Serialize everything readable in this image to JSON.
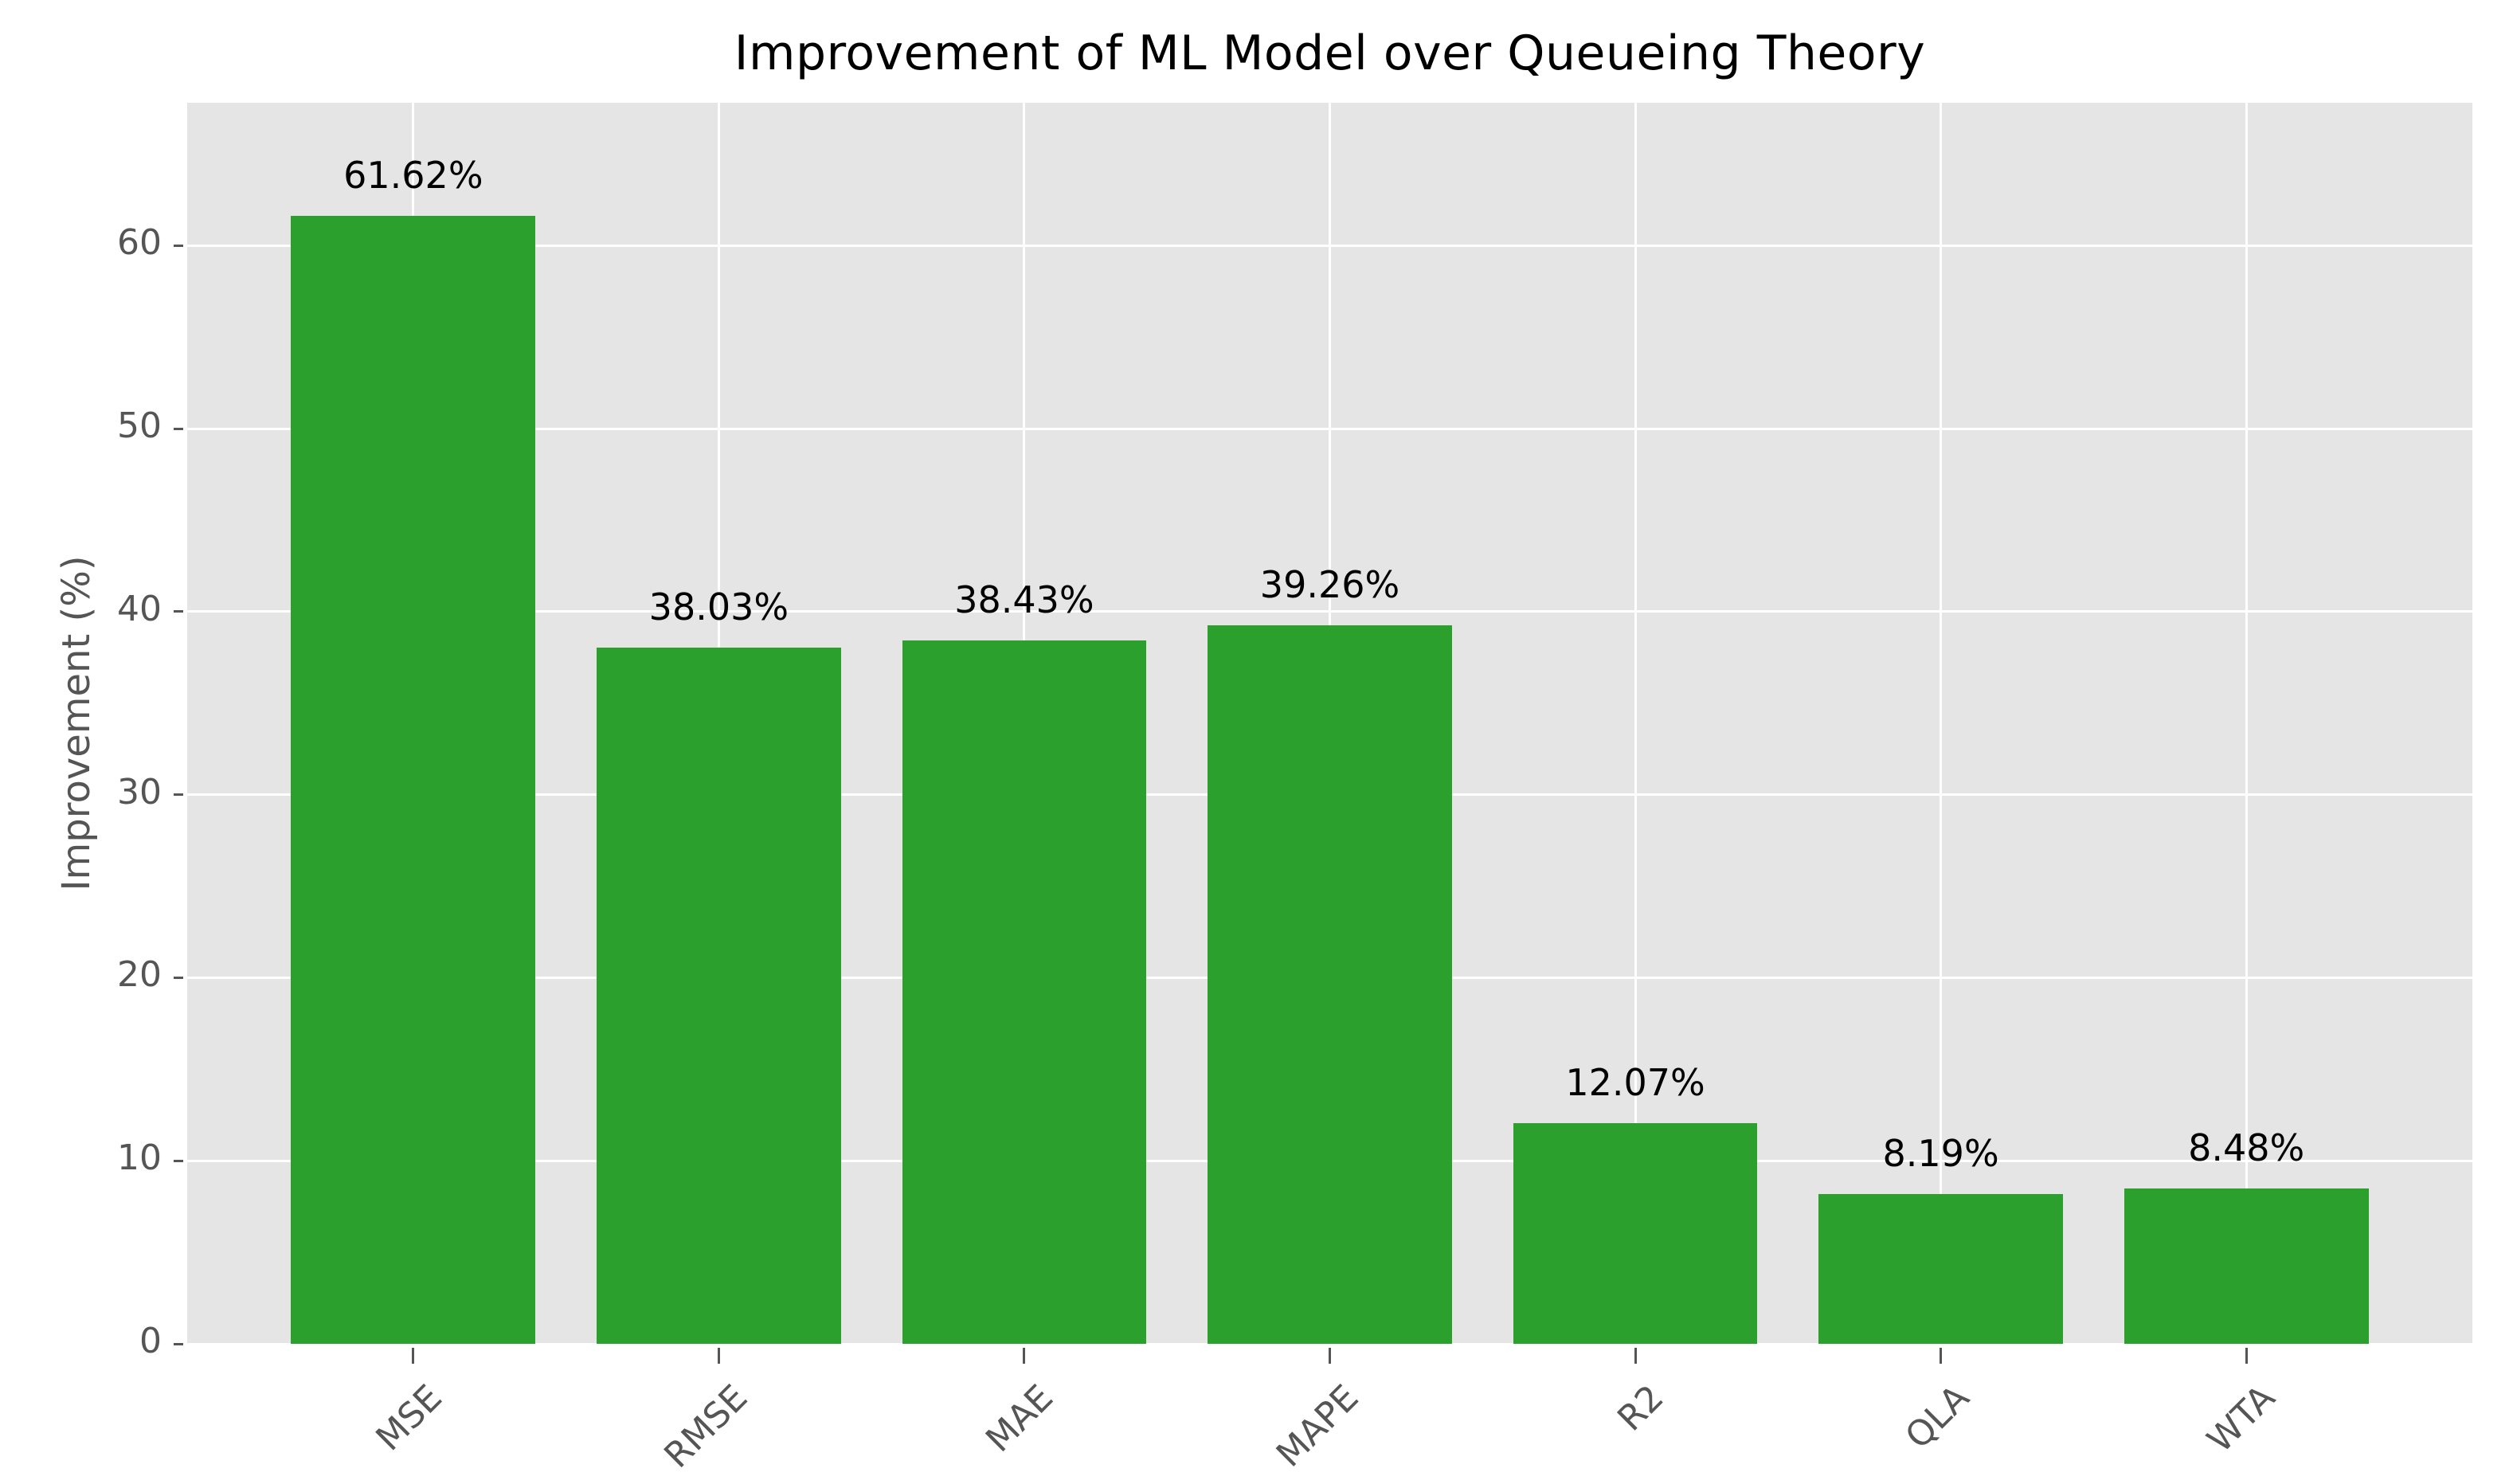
{
  "chart_data": {
    "type": "bar",
    "title": "Improvement of ML Model over Queueing Theory",
    "xlabel": "",
    "ylabel": "Improvement (%)",
    "categories": [
      "MSE",
      "RMSE",
      "MAE",
      "MAPE",
      "R2",
      "QLA",
      "WTA"
    ],
    "values": [
      61.62,
      38.03,
      38.43,
      39.26,
      12.07,
      8.19,
      8.48
    ],
    "bar_labels": [
      "61.62%",
      "38.03%",
      "38.43%",
      "39.26%",
      "12.07%",
      "8.19%",
      "8.48%"
    ],
    "yticks": [
      0,
      10,
      20,
      30,
      40,
      50,
      60
    ],
    "ylim": [
      0,
      67.8
    ],
    "grid": true,
    "legend": false,
    "colors": {
      "bar": "#2ca02c",
      "plot_background": "#e5e5e5",
      "figure_background": "#ffffff",
      "gridline": "#ffffff",
      "tick_text": "#555555",
      "value_label_text": "#000000",
      "title_text": "#000000"
    }
  }
}
